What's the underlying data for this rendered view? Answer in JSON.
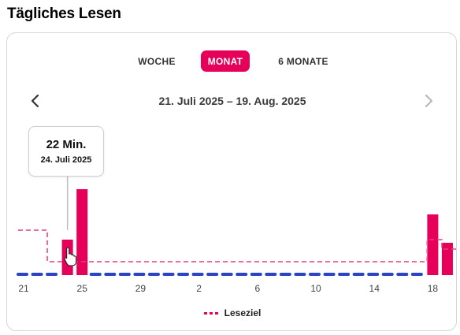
{
  "title": "Tägliches Lesen",
  "tabs": [
    {
      "label": "WOCHE",
      "active": false
    },
    {
      "label": "MONAT",
      "active": true
    },
    {
      "label": "6 MONATE",
      "active": false
    }
  ],
  "range_label": "21. Juli 2025 – 19. Aug. 2025",
  "tooltip": {
    "value": "22 Min.",
    "date": "24. Juli 2025"
  },
  "legend": {
    "goal_label": "Leseziel"
  },
  "icons": {
    "prev": "chevron-left-icon",
    "next": "chevron-right-icon",
    "cursor": "hand-cursor-icon"
  },
  "colors": {
    "accent": "#e6005a",
    "baseline": "#2a44c7",
    "axis_text": "#444444",
    "disabled": "#b8b8b8"
  },
  "chart_data": {
    "type": "bar",
    "x_tick_labels": [
      "21",
      "25",
      "29",
      "2",
      "6",
      "10",
      "14",
      "18"
    ],
    "days": [
      "21.07",
      "22.07",
      "23.07",
      "24.07",
      "25.07",
      "26.07",
      "27.07",
      "28.07",
      "29.07",
      "30.07",
      "31.07",
      "01.08",
      "02.08",
      "03.08",
      "04.08",
      "05.08",
      "06.08",
      "07.08",
      "08.08",
      "09.08",
      "10.08",
      "11.08",
      "12.08",
      "13.08",
      "14.08",
      "15.08",
      "16.08",
      "17.08",
      "18.08",
      "19.08"
    ],
    "values": [
      0,
      0,
      0,
      22,
      54,
      0,
      0,
      0,
      0,
      0,
      0,
      0,
      0,
      0,
      0,
      0,
      0,
      0,
      0,
      0,
      0,
      0,
      0,
      0,
      0,
      0,
      0,
      0,
      38,
      20
    ],
    "goal": [
      28,
      28,
      8,
      8,
      8,
      8,
      8,
      8,
      8,
      8,
      8,
      8,
      8,
      8,
      8,
      8,
      8,
      8,
      8,
      8,
      8,
      8,
      8,
      8,
      8,
      8,
      8,
      8,
      22,
      16
    ],
    "ylim": [
      0,
      60
    ],
    "selected_index": 3,
    "legend": [
      "Leseziel"
    ]
  }
}
